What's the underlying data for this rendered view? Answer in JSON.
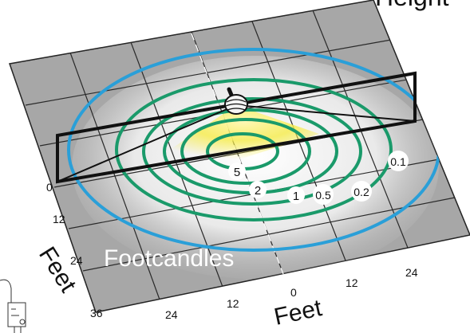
{
  "diagram": {
    "top_label": "Height",
    "footcandles_label": "Footcandles",
    "axis_left_label": "Feet",
    "axis_bottom_label": "Feet",
    "left_ticks": [
      "0",
      "12",
      "24",
      "36"
    ],
    "bottom_ticks": [
      "24",
      "12",
      "0",
      "12",
      "24"
    ],
    "contour_labels": [
      "5",
      "2",
      "1",
      "0.5",
      "0.2",
      "0.1"
    ],
    "colors": {
      "floor": "#a7a7a7",
      "floor_light": "#f2f2f2",
      "grid": "#2a2a2a",
      "contour_green": "#1a9a6a",
      "contour_blue": "#2a9fd8",
      "frame": "#111111",
      "glow": "#f6ec4a"
    }
  }
}
